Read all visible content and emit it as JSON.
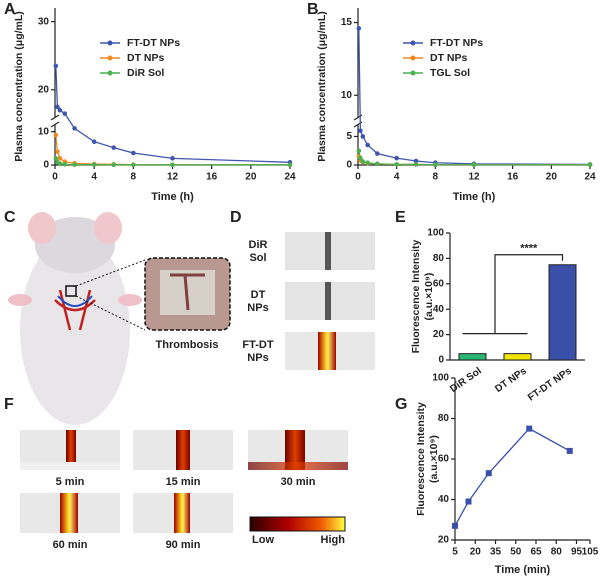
{
  "chart_data": [
    {
      "type": "line",
      "x_label": "Time (h)",
      "y_label": "Plasma concentration (μg/mL)",
      "x": [
        0.083,
        0.25,
        0.5,
        1,
        2,
        4,
        6,
        8,
        12,
        24
      ],
      "series": [
        {
          "name": "FT-DT NPs",
          "color": "#3f56b0",
          "values": [
            23.5,
            17.5,
            17,
            16.5,
            11,
            7,
            5.2,
            3.6,
            2,
            0.8
          ]
        },
        {
          "name": "DT NPs",
          "color": "#f08a24",
          "values": [
            9,
            4,
            2,
            1,
            0.5,
            0.3,
            0.2,
            0.1,
            0.1,
            0.05
          ]
        },
        {
          "name": "DiR Sol",
          "color": "#4caf50",
          "values": [
            2,
            0.8,
            0.4,
            0.2,
            0.1,
            0.1,
            0.05,
            0.05,
            0.05,
            0.05
          ]
        }
      ],
      "xlim": [
        0,
        24
      ],
      "xticks": [
        0,
        4,
        8,
        12,
        16,
        20,
        24
      ],
      "ylim": [
        0,
        32
      ],
      "y_break": [
        12,
        16
      ],
      "yticks": [
        0,
        10,
        20,
        30
      ],
      "legend": "upper center"
    },
    {
      "type": "line",
      "x_label": "Time (h)",
      "y_label": "Plasma concentration (μg/mL)",
      "x": [
        0.083,
        0.25,
        0.5,
        1,
        2,
        4,
        6,
        8,
        12,
        24
      ],
      "series": [
        {
          "name": "FT-DT NPs",
          "color": "#3f56b0",
          "values": [
            14.6,
            6,
            5,
            3.5,
            2,
            1.2,
            0.7,
            0.4,
            0.2,
            0.1
          ]
        },
        {
          "name": "DT NPs",
          "color": "#f08a24",
          "values": [
            1.5,
            0.8,
            0.5,
            0.3,
            0.2,
            0.1,
            0.1,
            0.05,
            0.05,
            0.05
          ]
        },
        {
          "name": "TGL Sol",
          "color": "#4caf50",
          "values": [
            2.5,
            1.2,
            0.6,
            0.4,
            0.2,
            0.1,
            0.1,
            0.05,
            0.05,
            0.05
          ]
        }
      ],
      "xlim": [
        0,
        24
      ],
      "xticks": [
        0,
        4,
        8,
        12,
        16,
        20,
        24
      ],
      "ylim": [
        0,
        16
      ],
      "y_break": [
        7,
        8.5
      ],
      "yticks": [
        0,
        5,
        10,
        15
      ],
      "legend": "upper center"
    },
    {
      "type": "bar",
      "y_label": "Fluorescence Intensity",
      "y_unit": "(a.u.×10⁹)",
      "categories": [
        "DiR Sol",
        "DT NPs",
        "FT-DT NPs"
      ],
      "values": [
        5,
        5,
        75
      ],
      "colors": [
        "#2bb673",
        "#f2e600",
        "#3a4fa8"
      ],
      "ylim": [
        0,
        100
      ],
      "yticks": [
        0,
        20,
        40,
        60,
        80,
        100
      ],
      "annotation": "****"
    },
    {
      "type": "line",
      "x_label": "Time (min)",
      "y_label": "Fluorescence Intensity",
      "y_unit": "(a.u.×10⁹)",
      "x": [
        5,
        15,
        30,
        60,
        90
      ],
      "series": [
        {
          "color": "#3a4fa8",
          "values": [
            27,
            39,
            53,
            75,
            64
          ]
        }
      ],
      "xlim": [
        5,
        105
      ],
      "xticks": [
        5,
        20,
        35,
        50,
        65,
        80,
        95,
        105
      ],
      "ylim": [
        20,
        100
      ],
      "yticks": [
        20,
        40,
        60,
        80,
        100
      ]
    }
  ],
  "panel_labels": [
    "A",
    "B",
    "C",
    "D",
    "E",
    "F",
    "G"
  ],
  "panel_c": {
    "label": "Thrombosis"
  },
  "panel_d": {
    "rows": [
      [
        "DiR",
        "Sol"
      ],
      [
        "DT",
        "NPs"
      ],
      [
        "FT-DT",
        "NPs"
      ]
    ]
  },
  "panel_f": {
    "captions": [
      "5 min",
      "15 min",
      "30 min",
      "60 min",
      "90 min"
    ],
    "colorbar": {
      "low": "Low",
      "high": "High"
    }
  }
}
